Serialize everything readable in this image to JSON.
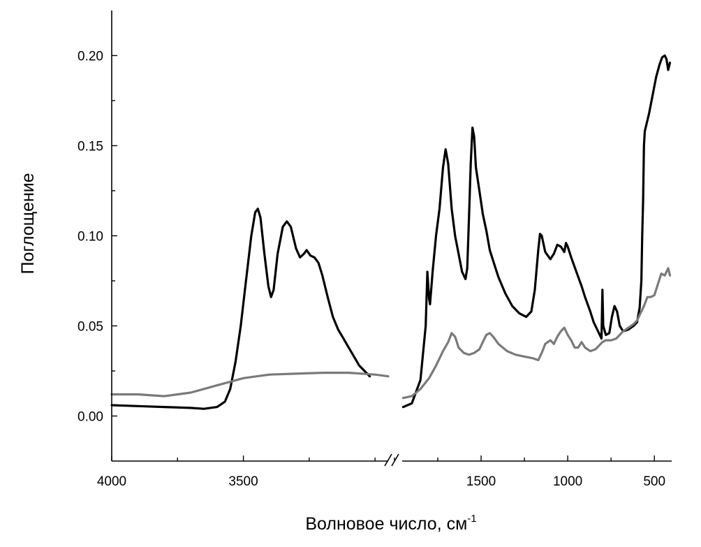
{
  "chart_data": {
    "type": "line",
    "title": "",
    "xlabel": "Волновое число, см",
    "xlabel_sup": "-1",
    "ylabel": "Поглощение",
    "axis_break": true,
    "x_segments": [
      {
        "xlim": [
          4000,
          2950
        ],
        "reversed": true,
        "major_ticks": [
          4000,
          3500
        ],
        "tick_labels": [
          "4000",
          "3500"
        ]
      },
      {
        "xlim": [
          2000,
          400
        ],
        "reversed": true,
        "major_ticks": [
          1500,
          1000,
          500
        ],
        "tick_labels": [
          "1500",
          "1000",
          "500"
        ]
      }
    ],
    "ylim": [
      -0.025,
      0.225
    ],
    "y_ticks": [
      0.0,
      0.05,
      0.1,
      0.15,
      0.2
    ],
    "y_tick_labels": [
      "0.00",
      "0.05",
      "0.10",
      "0.15",
      "0.20"
    ],
    "grid": false,
    "legend": "none",
    "series": [
      {
        "color": "#000000",
        "segments": [
          [
            [
              4000,
              0.006
            ],
            [
              3900,
              0.0055
            ],
            [
              3800,
              0.005
            ],
            [
              3700,
              0.0045
            ],
            [
              3650,
              0.004
            ],
            [
              3600,
              0.005
            ],
            [
              3570,
              0.008
            ],
            [
              3550,
              0.015
            ],
            [
              3530,
              0.03
            ],
            [
              3510,
              0.05
            ],
            [
              3490,
              0.075
            ],
            [
              3470,
              0.1
            ],
            [
              3455,
              0.113
            ],
            [
              3445,
              0.115
            ],
            [
              3435,
              0.11
            ],
            [
              3420,
              0.09
            ],
            [
              3405,
              0.072
            ],
            [
              3395,
              0.066
            ],
            [
              3385,
              0.07
            ],
            [
              3370,
              0.09
            ],
            [
              3350,
              0.105
            ],
            [
              3335,
              0.108
            ],
            [
              3320,
              0.105
            ],
            [
              3300,
              0.093
            ],
            [
              3285,
              0.088
            ],
            [
              3270,
              0.09
            ],
            [
              3260,
              0.092
            ],
            [
              3245,
              0.089
            ],
            [
              3230,
              0.088
            ],
            [
              3215,
              0.085
            ],
            [
              3200,
              0.078
            ],
            [
              3180,
              0.066
            ],
            [
              3160,
              0.055
            ],
            [
              3140,
              0.048
            ],
            [
              3120,
              0.043
            ],
            [
              3100,
              0.038
            ],
            [
              3080,
              0.033
            ],
            [
              3060,
              0.028
            ],
            [
              3040,
              0.025
            ],
            [
              3020,
              0.022
            ]
          ],
          [
            [
              1950,
              0.005
            ],
            [
              1900,
              0.007
            ],
            [
              1850,
              0.02
            ],
            [
              1820,
              0.05
            ],
            [
              1810,
              0.08
            ],
            [
              1800,
              0.065
            ],
            [
              1795,
              0.062
            ],
            [
              1780,
              0.08
            ],
            [
              1760,
              0.1
            ],
            [
              1740,
              0.115
            ],
            [
              1720,
              0.138
            ],
            [
              1705,
              0.148
            ],
            [
              1690,
              0.14
            ],
            [
              1670,
              0.115
            ],
            [
              1650,
              0.1
            ],
            [
              1630,
              0.09
            ],
            [
              1610,
              0.08
            ],
            [
              1590,
              0.076
            ],
            [
              1580,
              0.082
            ],
            [
              1570,
              0.11
            ],
            [
              1560,
              0.14
            ],
            [
              1550,
              0.16
            ],
            [
              1540,
              0.155
            ],
            [
              1530,
              0.138
            ],
            [
              1510,
              0.125
            ],
            [
              1490,
              0.112
            ],
            [
              1470,
              0.103
            ],
            [
              1450,
              0.092
            ],
            [
              1420,
              0.083
            ],
            [
              1400,
              0.077
            ],
            [
              1360,
              0.068
            ],
            [
              1320,
              0.061
            ],
            [
              1280,
              0.057
            ],
            [
              1240,
              0.055
            ],
            [
              1210,
              0.058
            ],
            [
              1190,
              0.07
            ],
            [
              1170,
              0.092
            ],
            [
              1160,
              0.101
            ],
            [
              1150,
              0.1
            ],
            [
              1130,
              0.091
            ],
            [
              1100,
              0.087
            ],
            [
              1080,
              0.09
            ],
            [
              1060,
              0.095
            ],
            [
              1040,
              0.094
            ],
            [
              1020,
              0.091
            ],
            [
              1010,
              0.096
            ],
            [
              1000,
              0.094
            ],
            [
              980,
              0.088
            ],
            [
              950,
              0.08
            ],
            [
              920,
              0.072
            ],
            [
              900,
              0.066
            ],
            [
              870,
              0.058
            ],
            [
              850,
              0.052
            ],
            [
              820,
              0.046
            ],
            [
              805,
              0.043
            ],
            [
              800,
              0.07
            ],
            [
              795,
              0.05
            ],
            [
              780,
              0.045
            ],
            [
              760,
              0.046
            ],
            [
              745,
              0.055
            ],
            [
              730,
              0.061
            ],
            [
              715,
              0.058
            ],
            [
              700,
              0.05
            ],
            [
              680,
              0.047
            ],
            [
              650,
              0.048
            ],
            [
              620,
              0.05
            ],
            [
              600,
              0.052
            ],
            [
              585,
              0.06
            ],
            [
              575,
              0.075
            ],
            [
              570,
              0.1
            ],
            [
              565,
              0.12
            ],
            [
              560,
              0.15
            ],
            [
              555,
              0.158
            ],
            [
              545,
              0.162
            ],
            [
              530,
              0.168
            ],
            [
              510,
              0.178
            ],
            [
              490,
              0.188
            ],
            [
              470,
              0.195
            ],
            [
              455,
              0.199
            ],
            [
              440,
              0.2
            ],
            [
              430,
              0.198
            ],
            [
              420,
              0.192
            ],
            [
              410,
              0.196
            ]
          ]
        ]
      },
      {
        "color": "#7a7a7a",
        "segments": [
          [
            [
              4000,
              0.012
            ],
            [
              3900,
              0.012
            ],
            [
              3800,
              0.011
            ],
            [
              3750,
              0.012
            ],
            [
              3700,
              0.013
            ],
            [
              3650,
              0.015
            ],
            [
              3600,
              0.017
            ],
            [
              3550,
              0.019
            ],
            [
              3500,
              0.021
            ],
            [
              3450,
              0.022
            ],
            [
              3400,
              0.023
            ],
            [
              3300,
              0.0235
            ],
            [
              3200,
              0.024
            ],
            [
              3100,
              0.024
            ],
            [
              3000,
              0.023
            ],
            [
              2950,
              0.022
            ]
          ],
          [
            [
              1950,
              0.01
            ],
            [
              1900,
              0.011
            ],
            [
              1850,
              0.015
            ],
            [
              1800,
              0.021
            ],
            [
              1760,
              0.028
            ],
            [
              1720,
              0.036
            ],
            [
              1690,
              0.041
            ],
            [
              1670,
              0.046
            ],
            [
              1650,
              0.044
            ],
            [
              1630,
              0.038
            ],
            [
              1600,
              0.035
            ],
            [
              1570,
              0.034
            ],
            [
              1540,
              0.035
            ],
            [
              1510,
              0.037
            ],
            [
              1490,
              0.041
            ],
            [
              1470,
              0.045
            ],
            [
              1450,
              0.046
            ],
            [
              1430,
              0.044
            ],
            [
              1400,
              0.04
            ],
            [
              1350,
              0.036
            ],
            [
              1300,
              0.034
            ],
            [
              1250,
              0.033
            ],
            [
              1200,
              0.032
            ],
            [
              1170,
              0.031
            ],
            [
              1150,
              0.035
            ],
            [
              1130,
              0.04
            ],
            [
              1100,
              0.042
            ],
            [
              1080,
              0.04
            ],
            [
              1060,
              0.044
            ],
            [
              1040,
              0.047
            ],
            [
              1020,
              0.049
            ],
            [
              1000,
              0.045
            ],
            [
              980,
              0.042
            ],
            [
              960,
              0.038
            ],
            [
              940,
              0.038
            ],
            [
              920,
              0.041
            ],
            [
              900,
              0.038
            ],
            [
              870,
              0.036
            ],
            [
              840,
              0.037
            ],
            [
              820,
              0.039
            ],
            [
              800,
              0.041
            ],
            [
              780,
              0.042
            ],
            [
              750,
              0.042
            ],
            [
              720,
              0.043
            ],
            [
              700,
              0.045
            ],
            [
              680,
              0.047
            ],
            [
              650,
              0.049
            ],
            [
              620,
              0.051
            ],
            [
              600,
              0.053
            ],
            [
              580,
              0.057
            ],
            [
              560,
              0.061
            ],
            [
              540,
              0.066
            ],
            [
              520,
              0.066
            ],
            [
              500,
              0.067
            ],
            [
              480,
              0.073
            ],
            [
              460,
              0.079
            ],
            [
              440,
              0.078
            ],
            [
              420,
              0.082
            ],
            [
              410,
              0.078
            ]
          ]
        ]
      }
    ]
  }
}
